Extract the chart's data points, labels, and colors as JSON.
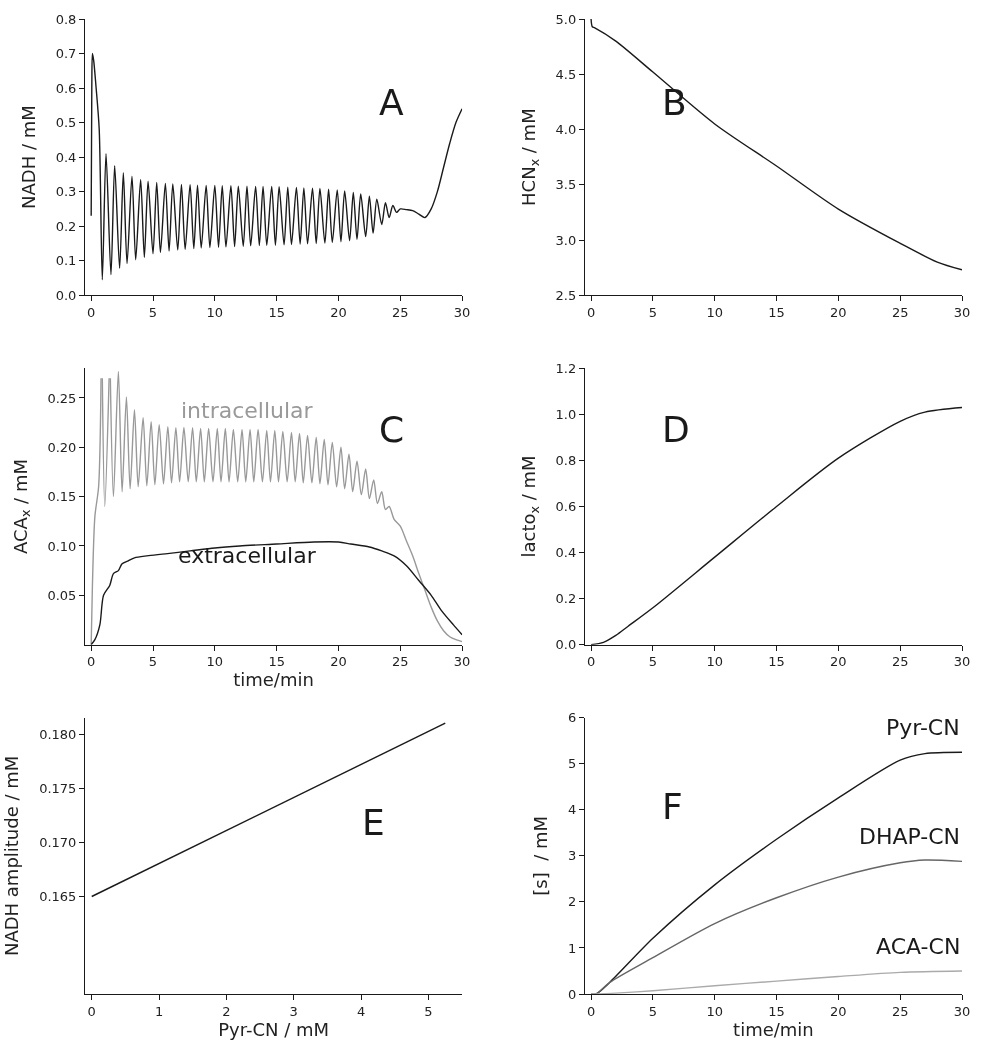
{
  "chart_data": [
    {
      "type": "line",
      "title": "A",
      "ylabel": "NADH / mM",
      "xlim": [
        -0.5,
        30
      ],
      "ylim": [
        0,
        0.8
      ],
      "xticks": [
        0,
        5,
        10,
        15,
        20,
        25,
        30
      ],
      "yticks": [
        {
          "value": 0,
          "label": "0.0"
        },
        0.1,
        0.2,
        0.3,
        0.4,
        0.5,
        0.6,
        0.7,
        0.8
      ],
      "series": [
        {
          "color": "#1a1a1a",
          "x": [
            0,
            0.05,
            0.1,
            0.2,
            0.4,
            0.65,
            0.9,
            1.2,
            1.6,
            1.9,
            2.3,
            2.6,
            2.9,
            3.3,
            3.6,
            4.0,
            4.3,
            4.6,
            5.0,
            5.3,
            5.6,
            6.0,
            6.3,
            6.6,
            7.0,
            7.3,
            7.6,
            8.0,
            8.3,
            8.6,
            8.9,
            9.3,
            9.6,
            10.0,
            10.3,
            10.6,
            10.9,
            11.3,
            11.6,
            11.9,
            12.3,
            12.6,
            12.9,
            13.3,
            13.6,
            13.9,
            14.2,
            14.6,
            14.9,
            15.2,
            15.6,
            15.9,
            16.2,
            16.6,
            16.9,
            17.2,
            17.5,
            17.9,
            18.2,
            18.5,
            18.9,
            19.2,
            19.5,
            19.9,
            20.2,
            20.5,
            20.9,
            21.2,
            21.5,
            21.8,
            22.2,
            22.5,
            22.8,
            23.1,
            23.5,
            23.8,
            24.1,
            24.4,
            24.7,
            25.0,
            25.5,
            26.0,
            26.5,
            27.0,
            27.5,
            28.0,
            28.5,
            29.0,
            29.5,
            30.0
          ],
          "values": [
            0.23,
            0.6,
            0.7,
            0.68,
            0.6,
            0.48,
            0.045,
            0.41,
            0.06,
            0.375,
            0.078,
            0.355,
            0.092,
            0.345,
            0.103,
            0.335,
            0.11,
            0.33,
            0.12,
            0.327,
            0.124,
            0.324,
            0.128,
            0.322,
            0.131,
            0.321,
            0.133,
            0.32,
            0.135,
            0.319,
            0.137,
            0.318,
            0.138,
            0.318,
            0.139,
            0.317,
            0.14,
            0.317,
            0.141,
            0.316,
            0.142,
            0.316,
            0.143,
            0.315,
            0.144,
            0.315,
            0.145,
            0.315,
            0.145,
            0.314,
            0.146,
            0.313,
            0.147,
            0.312,
            0.148,
            0.311,
            0.149,
            0.31,
            0.15,
            0.309,
            0.151,
            0.307,
            0.153,
            0.305,
            0.155,
            0.302,
            0.158,
            0.298,
            0.162,
            0.293,
            0.17,
            0.287,
            0.18,
            0.278,
            0.205,
            0.268,
            0.225,
            0.26,
            0.24,
            0.25,
            0.248,
            0.245,
            0.235,
            0.225,
            0.25,
            0.3,
            0.37,
            0.44,
            0.5,
            0.54
          ]
        }
      ]
    },
    {
      "type": "line",
      "title": "B",
      "ylabel": "HCN$_{x}$ / mM",
      "xlim": [
        -0.5,
        30
      ],
      "ylim": [
        2.5,
        5.0
      ],
      "xticks": [
        0,
        5,
        10,
        15,
        20,
        25,
        30
      ],
      "yticks": [
        2.5,
        {
          "value": 3,
          "label": "3.0"
        },
        3.5,
        {
          "value": 4,
          "label": "4.0"
        },
        4.5,
        {
          "value": 5,
          "label": "5.0"
        }
      ],
      "series": [
        {
          "color": "#1a1a1a",
          "x": [
            0,
            0.1,
            0.3,
            2,
            5,
            10,
            15,
            20,
            25,
            28,
            30
          ],
          "values": [
            5.0,
            4.93,
            4.92,
            4.8,
            4.52,
            4.05,
            3.67,
            3.28,
            2.97,
            2.8,
            2.73
          ]
        }
      ]
    },
    {
      "type": "line",
      "title": "C",
      "ylabel": "ACA$_{x}$ / mM",
      "xlabel": "time/min",
      "xlim": [
        -0.5,
        30
      ],
      "ylim": [
        0,
        0.28
      ],
      "xticks": [
        0,
        5,
        10,
        15,
        20,
        25,
        30
      ],
      "yticks": [
        0.05,
        {
          "value": 0.1,
          "label": "0.10"
        },
        0.15,
        {
          "value": 0.2,
          "label": "0.20"
        },
        0.25
      ],
      "series": [
        {
          "name": "intracellular",
          "color": "#999999",
          "x": [
            0,
            0.1,
            0.3,
            0.6,
            0.8,
            0.85,
            0.9,
            1.1,
            1.45,
            1.5,
            1.55,
            1.8,
            2.2,
            2.5,
            2.85,
            3.15,
            3.5,
            3.8,
            4.2,
            4.5,
            4.85,
            5.15,
            5.5,
            5.85,
            6.2,
            6.5,
            6.85,
            7.15,
            7.5,
            7.85,
            8.2,
            8.5,
            8.85,
            9.15,
            9.5,
            9.85,
            10.2,
            10.5,
            10.85,
            11.15,
            11.5,
            11.85,
            12.2,
            12.5,
            12.85,
            13.15,
            13.5,
            13.85,
            14.2,
            14.5,
            14.85,
            15.15,
            15.5,
            15.85,
            16.2,
            16.5,
            16.85,
            17.15,
            17.5,
            17.85,
            18.2,
            18.5,
            18.85,
            19.15,
            19.5,
            19.85,
            20.2,
            20.5,
            20.85,
            21.15,
            21.5,
            21.85,
            22.2,
            22.5,
            22.85,
            23.15,
            23.5,
            23.8,
            24.1,
            24.5,
            25,
            25.5,
            26,
            26.5,
            27,
            27.5,
            28,
            28.5,
            29,
            29.5,
            30
          ],
          "values": [
            0.0,
            0.06,
            0.13,
            0.16,
            0.27,
            null,
            0.27,
            0.14,
            0.27,
            null,
            0.27,
            0.15,
            0.277,
            0.155,
            0.251,
            0.158,
            0.238,
            0.16,
            0.23,
            0.161,
            0.226,
            0.162,
            0.223,
            0.163,
            0.221,
            0.164,
            0.22,
            0.165,
            0.22,
            0.165,
            0.22,
            0.165,
            0.219,
            0.165,
            0.219,
            0.165,
            0.219,
            0.165,
            0.219,
            0.165,
            0.218,
            0.165,
            0.218,
            0.165,
            0.218,
            0.165,
            0.218,
            0.165,
            0.217,
            0.165,
            0.217,
            0.165,
            0.216,
            0.165,
            0.215,
            0.165,
            0.214,
            0.164,
            0.212,
            0.164,
            0.21,
            0.163,
            0.208,
            0.162,
            0.205,
            0.16,
            0.2,
            0.158,
            0.193,
            0.155,
            0.186,
            0.152,
            0.178,
            0.148,
            0.167,
            0.143,
            0.155,
            0.137,
            0.14,
            0.127,
            0.12,
            0.105,
            0.09,
            0.072,
            0.055,
            0.038,
            0.024,
            0.014,
            0.008,
            0.005,
            0.003
          ]
        },
        {
          "name": "extracellular",
          "color": "#1a1a1a",
          "x": [
            0,
            0.3,
            0.7,
            1.0,
            1.5,
            1.8,
            2.2,
            2.5,
            3.0,
            3.5,
            4.5,
            6,
            8,
            10,
            12,
            15,
            18,
            20,
            21,
            22.5,
            23.5,
            24.5,
            25.5,
            26.5,
            27.5,
            28.3,
            29.3,
            30
          ],
          "values": [
            0.0,
            0.005,
            0.02,
            0.05,
            0.06,
            0.072,
            0.075,
            0.082,
            0.085,
            0.088,
            0.09,
            0.092,
            0.095,
            0.098,
            0.1,
            0.102,
            0.104,
            0.104,
            0.102,
            0.099,
            0.095,
            0.09,
            0.08,
            0.065,
            0.05,
            0.035,
            0.02,
            0.01
          ]
        }
      ]
    },
    {
      "type": "line",
      "title": "D",
      "ylabel": "lacto$_{x}$ / mM",
      "xlim": [
        -0.5,
        30
      ],
      "ylim": [
        0,
        1.2
      ],
      "xticks": [
        0,
        5,
        10,
        15,
        20,
        25,
        30
      ],
      "yticks": [
        {
          "value": 0,
          "label": "0.0"
        },
        0.2,
        0.4,
        0.6,
        0.8,
        {
          "value": 1,
          "label": "1.0"
        },
        1.2
      ],
      "series": [
        {
          "color": "#1a1a1a",
          "x": [
            0,
            1,
            2,
            3,
            5,
            10,
            15,
            20,
            25,
            27,
            30
          ],
          "values": [
            0,
            0.01,
            0.04,
            0.08,
            0.16,
            0.38,
            0.6,
            0.81,
            0.97,
            1.01,
            1.03
          ]
        }
      ]
    },
    {
      "type": "line",
      "title": "E",
      "ylabel": "NADH amplitude / mM",
      "xlabel": "Pyr-CN / mM",
      "xlim": [
        -0.1,
        5.5
      ],
      "ylim": [
        0.156,
        0.1815
      ],
      "xticks": [
        0,
        1,
        2,
        3,
        4,
        5
      ],
      "yticks": [
        0.165,
        {
          "value": 0.17,
          "label": "0.170"
        },
        0.175,
        {
          "value": 0.18,
          "label": "0.180"
        }
      ],
      "series": [
        {
          "color": "#1a1a1a",
          "x": [
            0,
            5.25
          ],
          "values": [
            0.165,
            0.181
          ]
        }
      ]
    },
    {
      "type": "line",
      "title": "F",
      "ylabel": "[s]  / mM",
      "xlabel": "time/min",
      "xlim": [
        -0.5,
        30
      ],
      "ylim": [
        0,
        6
      ],
      "xticks": [
        0,
        5,
        10,
        15,
        20,
        25,
        30
      ],
      "yticks": [
        0,
        1,
        2,
        3,
        4,
        5,
        6
      ],
      "series": [
        {
          "name": "Pyr-CN",
          "color": "#1a1a1a",
          "x": [
            0,
            0.4,
            1.5,
            5,
            10,
            15,
            20,
            25,
            27,
            30
          ],
          "values": [
            0,
            0,
            0.25,
            1.21,
            2.37,
            3.36,
            4.26,
            5.08,
            5.22,
            5.25
          ]
        },
        {
          "name": "DHAP-CN",
          "color": "#666666",
          "x": [
            0,
            0.4,
            1.5,
            5,
            10,
            15,
            20,
            25,
            27,
            30
          ],
          "values": [
            0,
            0,
            0.25,
            0.79,
            1.53,
            2.09,
            2.54,
            2.85,
            2.91,
            2.88
          ]
        },
        {
          "name": "ACA-CN",
          "color": "#aaaaaa",
          "x": [
            0,
            2,
            5,
            10,
            15,
            20,
            25,
            30
          ],
          "values": [
            0,
            0.02,
            0.07,
            0.18,
            0.28,
            0.38,
            0.47,
            0.5
          ]
        }
      ]
    }
  ]
}
